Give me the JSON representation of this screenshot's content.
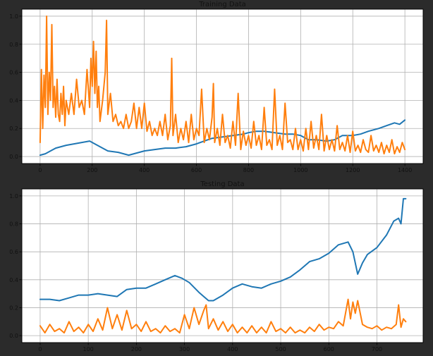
{
  "chart_data": [
    {
      "type": "line",
      "title": "Training Data",
      "xlabel": "",
      "ylabel": "",
      "xlim": [
        -70,
        1470
      ],
      "ylim": [
        -0.05,
        1.05
      ],
      "xticks": [
        0,
        200,
        400,
        600,
        800,
        1000,
        1200,
        1400
      ],
      "yticks": [
        0.0,
        0.2,
        0.4,
        0.6,
        0.8,
        1.0
      ],
      "grid": true,
      "series": [
        {
          "color": "#1f77b4",
          "x": [
            0,
            20,
            40,
            60,
            80,
            100,
            130,
            160,
            190,
            200,
            230,
            260,
            300,
            340,
            360,
            400,
            440,
            480,
            520,
            560,
            600,
            630,
            660,
            700,
            740,
            780,
            800,
            830,
            860,
            900,
            940,
            970,
            1000,
            1030,
            1060,
            1100,
            1130,
            1160,
            1200,
            1230,
            1260,
            1300,
            1330,
            1360,
            1380,
            1400
          ],
          "y": [
            0.01,
            0.02,
            0.04,
            0.06,
            0.07,
            0.08,
            0.09,
            0.1,
            0.11,
            0.1,
            0.07,
            0.04,
            0.03,
            0.01,
            0.02,
            0.04,
            0.05,
            0.06,
            0.06,
            0.07,
            0.09,
            0.11,
            0.13,
            0.14,
            0.15,
            0.16,
            0.17,
            0.18,
            0.18,
            0.17,
            0.16,
            0.16,
            0.15,
            0.12,
            0.12,
            0.11,
            0.12,
            0.15,
            0.15,
            0.16,
            0.18,
            0.2,
            0.22,
            0.24,
            0.23,
            0.26
          ]
        },
        {
          "color": "#ff7f0e",
          "x": [
            0,
            5,
            10,
            15,
            20,
            25,
            30,
            35,
            40,
            45,
            50,
            55,
            60,
            65,
            70,
            75,
            80,
            85,
            90,
            95,
            100,
            110,
            120,
            130,
            140,
            150,
            160,
            170,
            180,
            190,
            195,
            200,
            205,
            210,
            215,
            220,
            225,
            230,
            240,
            250,
            255,
            260,
            270,
            280,
            290,
            300,
            310,
            320,
            330,
            340,
            350,
            360,
            370,
            380,
            390,
            400,
            410,
            420,
            430,
            440,
            450,
            460,
            470,
            480,
            490,
            500,
            505,
            510,
            520,
            530,
            540,
            550,
            560,
            570,
            580,
            590,
            600,
            610,
            620,
            630,
            640,
            650,
            660,
            665,
            670,
            680,
            690,
            700,
            710,
            720,
            730,
            740,
            750,
            760,
            770,
            780,
            790,
            800,
            810,
            820,
            830,
            840,
            850,
            860,
            870,
            880,
            890,
            900,
            910,
            920,
            930,
            940,
            950,
            960,
            970,
            980,
            990,
            1000,
            1010,
            1020,
            1030,
            1040,
            1050,
            1060,
            1070,
            1080,
            1090,
            1100,
            1110,
            1120,
            1130,
            1140,
            1150,
            1160,
            1170,
            1180,
            1190,
            1200,
            1210,
            1220,
            1230,
            1240,
            1250,
            1260,
            1270,
            1280,
            1290,
            1300,
            1310,
            1320,
            1330,
            1340,
            1350,
            1360,
            1370,
            1380,
            1390,
            1400
          ],
          "y": [
            0.1,
            0.62,
            0.2,
            0.58,
            0.35,
            1.0,
            0.3,
            0.6,
            0.4,
            0.94,
            0.35,
            0.5,
            0.28,
            0.55,
            0.3,
            0.25,
            0.45,
            0.3,
            0.5,
            0.22,
            0.4,
            0.3,
            0.45,
            0.3,
            0.55,
            0.35,
            0.4,
            0.3,
            0.62,
            0.35,
            0.7,
            0.5,
            0.82,
            0.45,
            0.75,
            0.35,
            0.5,
            0.25,
            0.4,
            0.6,
            0.97,
            0.3,
            0.45,
            0.25,
            0.3,
            0.22,
            0.25,
            0.2,
            0.3,
            0.2,
            0.25,
            0.38,
            0.2,
            0.35,
            0.2,
            0.38,
            0.18,
            0.25,
            0.15,
            0.2,
            0.15,
            0.25,
            0.15,
            0.3,
            0.12,
            0.22,
            0.7,
            0.15,
            0.3,
            0.1,
            0.2,
            0.12,
            0.25,
            0.1,
            0.3,
            0.12,
            0.2,
            0.15,
            0.48,
            0.1,
            0.2,
            0.12,
            0.28,
            0.52,
            0.1,
            0.2,
            0.08,
            0.3,
            0.1,
            0.15,
            0.06,
            0.25,
            0.08,
            0.45,
            0.05,
            0.18,
            0.08,
            0.15,
            0.06,
            0.25,
            0.08,
            0.15,
            0.05,
            0.35,
            0.08,
            0.12,
            0.05,
            0.48,
            0.08,
            0.15,
            0.05,
            0.38,
            0.1,
            0.12,
            0.05,
            0.2,
            0.05,
            0.12,
            0.04,
            0.2,
            0.05,
            0.25,
            0.06,
            0.15,
            0.05,
            0.3,
            0.04,
            0.15,
            0.05,
            0.12,
            0.04,
            0.22,
            0.05,
            0.1,
            0.04,
            0.15,
            0.03,
            0.18,
            0.04,
            0.08,
            0.03,
            0.12,
            0.05,
            0.03,
            0.15,
            0.04,
            0.08,
            0.03,
            0.1,
            0.02,
            0.08,
            0.03,
            0.12,
            0.02,
            0.07,
            0.03,
            0.1,
            0.05
          ]
        }
      ]
    },
    {
      "type": "line",
      "title": "Testing Data",
      "xlabel": "",
      "ylabel": "",
      "xlim": [
        -38,
        796
      ],
      "ylim": [
        -0.05,
        1.05
      ],
      "xticks": [
        0,
        100,
        200,
        300,
        400,
        500,
        600,
        700
      ],
      "yticks": [
        0.0,
        0.2,
        0.4,
        0.6,
        0.8,
        1.0
      ],
      "grid": true,
      "series": [
        {
          "color": "#1f77b4",
          "x": [
            0,
            20,
            40,
            60,
            80,
            100,
            120,
            140,
            160,
            180,
            200,
            220,
            240,
            260,
            280,
            295,
            310,
            330,
            350,
            360,
            380,
            400,
            420,
            440,
            460,
            480,
            500,
            520,
            540,
            560,
            580,
            600,
            620,
            640,
            650,
            660,
            670,
            680,
            700,
            720,
            735,
            745,
            750,
            755,
            760
          ],
          "y": [
            0.26,
            0.26,
            0.25,
            0.27,
            0.29,
            0.29,
            0.3,
            0.29,
            0.28,
            0.33,
            0.34,
            0.34,
            0.37,
            0.4,
            0.43,
            0.41,
            0.38,
            0.31,
            0.25,
            0.25,
            0.29,
            0.34,
            0.37,
            0.35,
            0.34,
            0.37,
            0.39,
            0.42,
            0.47,
            0.53,
            0.55,
            0.59,
            0.65,
            0.67,
            0.6,
            0.44,
            0.52,
            0.58,
            0.63,
            0.72,
            0.82,
            0.84,
            0.8,
            0.98,
            0.98
          ]
        },
        {
          "color": "#ff7f0e",
          "x": [
            0,
            10,
            20,
            30,
            40,
            50,
            60,
            70,
            80,
            90,
            100,
            110,
            120,
            130,
            140,
            150,
            160,
            170,
            180,
            190,
            200,
            210,
            220,
            230,
            240,
            250,
            260,
            270,
            280,
            290,
            300,
            310,
            320,
            330,
            340,
            345,
            350,
            360,
            370,
            380,
            390,
            400,
            410,
            420,
            430,
            440,
            450,
            460,
            470,
            480,
            490,
            500,
            510,
            520,
            530,
            540,
            550,
            560,
            570,
            580,
            590,
            600,
            610,
            620,
            630,
            640,
            645,
            650,
            655,
            660,
            670,
            680,
            690,
            700,
            710,
            720,
            730,
            740,
            745,
            750,
            755,
            760
          ],
          "y": [
            0.07,
            0.02,
            0.08,
            0.03,
            0.05,
            0.02,
            0.1,
            0.03,
            0.06,
            0.02,
            0.08,
            0.03,
            0.12,
            0.04,
            0.2,
            0.05,
            0.15,
            0.04,
            0.18,
            0.05,
            0.08,
            0.03,
            0.1,
            0.03,
            0.05,
            0.02,
            0.07,
            0.03,
            0.05,
            0.02,
            0.15,
            0.05,
            0.2,
            0.08,
            0.18,
            0.22,
            0.05,
            0.12,
            0.04,
            0.1,
            0.03,
            0.08,
            0.02,
            0.06,
            0.02,
            0.07,
            0.02,
            0.06,
            0.02,
            0.1,
            0.03,
            0.05,
            0.02,
            0.06,
            0.02,
            0.04,
            0.02,
            0.06,
            0.03,
            0.08,
            0.04,
            0.06,
            0.05,
            0.1,
            0.07,
            0.26,
            0.12,
            0.24,
            0.16,
            0.25,
            0.08,
            0.06,
            0.05,
            0.07,
            0.04,
            0.06,
            0.05,
            0.08,
            0.22,
            0.06,
            0.12,
            0.1
          ]
        }
      ]
    }
  ]
}
